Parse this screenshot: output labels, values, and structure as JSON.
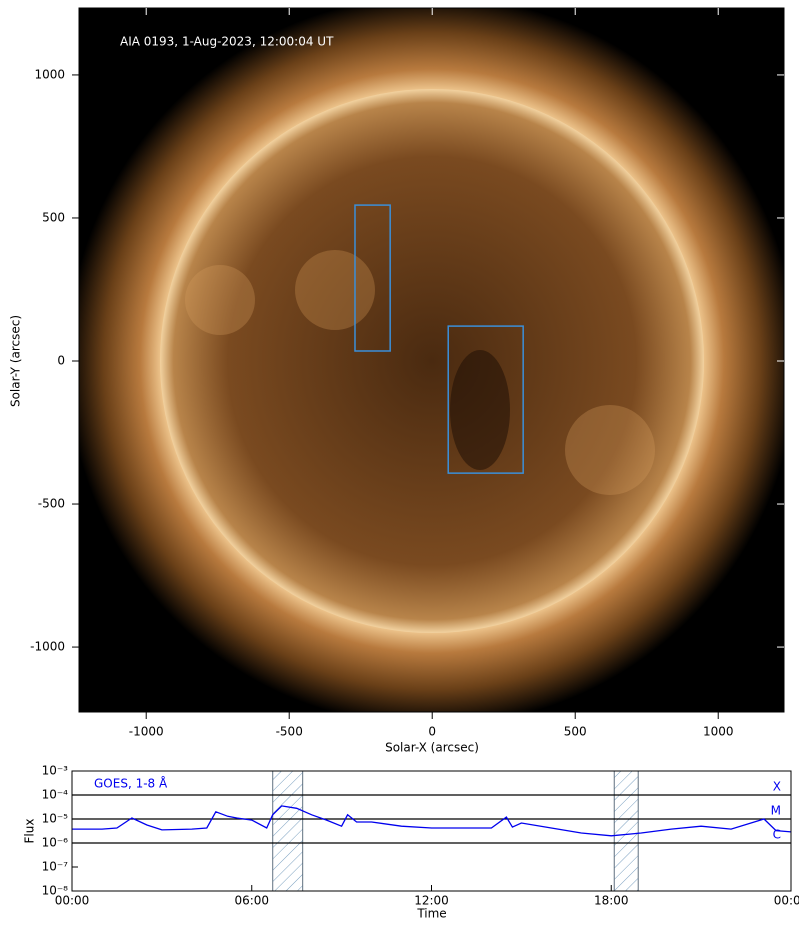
{
  "chart_data": [
    {
      "type": "image",
      "annotation": "AIA 0193, 1-Aug-2023, 12:00:04 UT",
      "xlabel": "Solar-X (arcsec)",
      "ylabel": "Solar-Y (arcsec)",
      "xlim": [
        -1235,
        1230
      ],
      "ylim": [
        -1227,
        1234
      ],
      "xticks": [
        -1000,
        -500,
        0,
        500,
        1000
      ],
      "yticks": [
        -1000,
        -500,
        0,
        500,
        1000
      ],
      "box_color": "#3b8fd9",
      "boxes": [
        {
          "x": [
            -270,
            -147
          ],
          "y": [
            35,
            545
          ]
        },
        {
          "x": [
            56,
            318
          ],
          "y": [
            -392,
            122
          ]
        }
      ]
    },
    {
      "type": "line",
      "log_y": true,
      "annotation": "GOES, 1-8 Å",
      "xlabel": "Time",
      "ylabel": "Flux",
      "color": "#0000ee",
      "xlim": [
        0,
        24
      ],
      "ylim": [
        1e-08,
        0.001
      ],
      "xticks": [
        {
          "value": 0,
          "label": "00:00"
        },
        {
          "value": 6,
          "label": "06:00"
        },
        {
          "value": 12,
          "label": "12:00"
        },
        {
          "value": 18,
          "label": "18:00"
        },
        {
          "value": 24,
          "label": "00:00"
        }
      ],
      "yticks": [
        {
          "value": 1e-08,
          "label": "10⁻⁸"
        },
        {
          "value": 1e-07,
          "label": "10⁻⁷"
        },
        {
          "value": 1e-06,
          "label": "10⁻⁶"
        },
        {
          "value": 1e-05,
          "label": "10⁻⁵"
        },
        {
          "value": 0.0001,
          "label": "10⁻⁴"
        },
        {
          "value": 0.001,
          "label": "10⁻³"
        }
      ],
      "levels": [
        {
          "value": 0.0001,
          "label": "X"
        },
        {
          "value": 1e-05,
          "label": "M"
        },
        {
          "value": 1e-06,
          "label": "C"
        }
      ],
      "intervals": [
        [
          6.7,
          7.7
        ],
        [
          18.1,
          18.9
        ]
      ],
      "x": [
        0,
        1,
        1.5,
        2,
        2.5,
        3,
        4,
        4.5,
        4.8,
        5.2,
        5.5,
        6,
        6.5,
        6.7,
        7,
        7.5,
        8,
        8.5,
        9,
        9.2,
        9.5,
        10,
        11,
        12,
        13,
        14,
        14.5,
        14.7,
        15,
        16,
        17,
        18,
        19,
        20,
        21,
        22,
        23.1,
        23.5,
        24
      ],
      "values": [
        3.8e-06,
        3.8e-06,
        4.2e-06,
        1.1e-05,
        5.6e-06,
        3.5e-06,
        3.8e-06,
        4.2e-06,
        2e-05,
        1.3e-05,
        1.1e-05,
        9e-06,
        4.2e-06,
        1.5e-05,
        3.5e-05,
        2.8e-05,
        1.5e-05,
        9e-06,
        5e-06,
        1.5e-05,
        7.5e-06,
        7.5e-06,
        5e-06,
        4.2e-06,
        4.2e-06,
        4.2e-06,
        1.2e-05,
        4.6e-06,
        6.8e-06,
        4.2e-06,
        2.6e-06,
        2e-06,
        2.6e-06,
        3.8e-06,
        5e-06,
        3.8e-06,
        1e-05,
        3.3e-06,
        2.9e-06
      ]
    }
  ]
}
